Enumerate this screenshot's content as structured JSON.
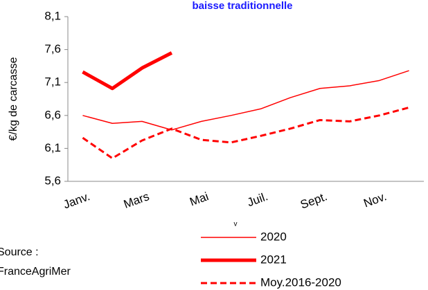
{
  "chart_data": {
    "type": "line",
    "title": "baisse traditionnelle",
    "y_label": "€/kg de carcasse",
    "categories": [
      "Janv.",
      null,
      "Mars",
      null,
      "Mai",
      null,
      "Juil.",
      null,
      "Sept.",
      null,
      "Nov.",
      null
    ],
    "series": [
      {
        "name": "2020",
        "color": "#ff0000",
        "width": 1.5,
        "dash": "solid",
        "values": [
          6.6,
          6.48,
          6.51,
          6.38,
          6.51,
          6.6,
          6.7,
          6.87,
          7.01,
          7.05,
          7.13,
          7.28
        ]
      },
      {
        "name": "2021",
        "color": "#ff0000",
        "width": 5,
        "dash": "solid",
        "values": [
          7.26,
          7.01,
          7.32,
          7.55,
          null,
          null,
          null,
          null,
          null,
          null,
          null,
          null
        ]
      },
      {
        "name": "Moy.2016-2020",
        "color": "#ff0000",
        "width": 3,
        "dash": "dashed",
        "values": [
          6.26,
          5.95,
          6.22,
          6.4,
          6.23,
          6.19,
          6.29,
          6.4,
          6.53,
          6.51,
          6.6,
          6.72
        ]
      }
    ],
    "ylim": [
      5.6,
      8.1
    ],
    "yticks": [
      {
        "value": 5.6,
        "label": "5,6"
      },
      {
        "value": 6.1,
        "label": "6,1"
      },
      {
        "value": 6.6,
        "label": "6,6"
      },
      {
        "value": 7.1,
        "label": "7,1"
      },
      {
        "value": 7.6,
        "label": "7,6"
      },
      {
        "value": 8.1,
        "label": "8,1"
      }
    ],
    "note": "v",
    "source": [
      "Source :",
      "FranceAgriMer"
    ]
  }
}
